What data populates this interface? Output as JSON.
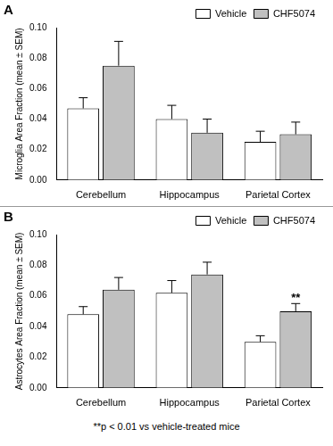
{
  "chart_data": [
    {
      "type": "bar",
      "title": "A",
      "y_label": "Microglia Area Fraction (mean ± SEM)",
      "categories": [
        "Cerebellum",
        "Hippocampus",
        "Parietal Cortex"
      ],
      "series": [
        {
          "name": "Vehicle",
          "color": "#ffffff",
          "values": [
            0.047,
            0.04,
            0.025
          ],
          "errors": [
            0.007,
            0.009,
            0.007
          ]
        },
        {
          "name": "CHF5074",
          "color": "#c0c0c0",
          "values": [
            0.075,
            0.031,
            0.03
          ],
          "errors": [
            0.016,
            0.009,
            0.008
          ]
        }
      ],
      "ylim": [
        0,
        0.1
      ],
      "yticks": [
        {
          "value": 0,
          "label": "0.00"
        },
        {
          "value": 0.02,
          "label": "0.02"
        },
        {
          "value": 0.04,
          "label": "0.04"
        },
        {
          "value": 0.06,
          "label": "0.06"
        },
        {
          "value": 0.08,
          "label": "0.08"
        },
        {
          "value": 0.1,
          "label": "0.10"
        }
      ],
      "grid": false,
      "legend": "upper right"
    },
    {
      "type": "bar",
      "title": "B",
      "y_label": "Astrocytes Area Fraction (mean ± SEM)",
      "categories": [
        "Cerebellum",
        "Hippocampus",
        "Parietal Cortex"
      ],
      "series": [
        {
          "name": "Vehicle",
          "color": "#ffffff",
          "values": [
            0.048,
            0.062,
            0.03
          ],
          "errors": [
            0.005,
            0.008,
            0.004
          ]
        },
        {
          "name": "CHF5074",
          "color": "#c0c0c0",
          "values": [
            0.064,
            0.074,
            0.05
          ],
          "errors": [
            0.008,
            0.008,
            0.005
          ]
        }
      ],
      "ylim": [
        0,
        0.1
      ],
      "yticks": [
        {
          "value": 0,
          "label": "0.00"
        },
        {
          "value": 0.02,
          "label": "0.02"
        },
        {
          "value": 0.04,
          "label": "0.04"
        },
        {
          "value": 0.06,
          "label": "0.06"
        },
        {
          "value": 0.08,
          "label": "0.08"
        },
        {
          "value": 0.1,
          "label": "0.10"
        }
      ],
      "grid": false,
      "legend": "upper right",
      "annotations": [
        {
          "text": "**",
          "category": "Parietal Cortex",
          "series": "CHF5074"
        }
      ]
    }
  ],
  "footnote": "**p < 0.01 vs vehicle-treated mice"
}
